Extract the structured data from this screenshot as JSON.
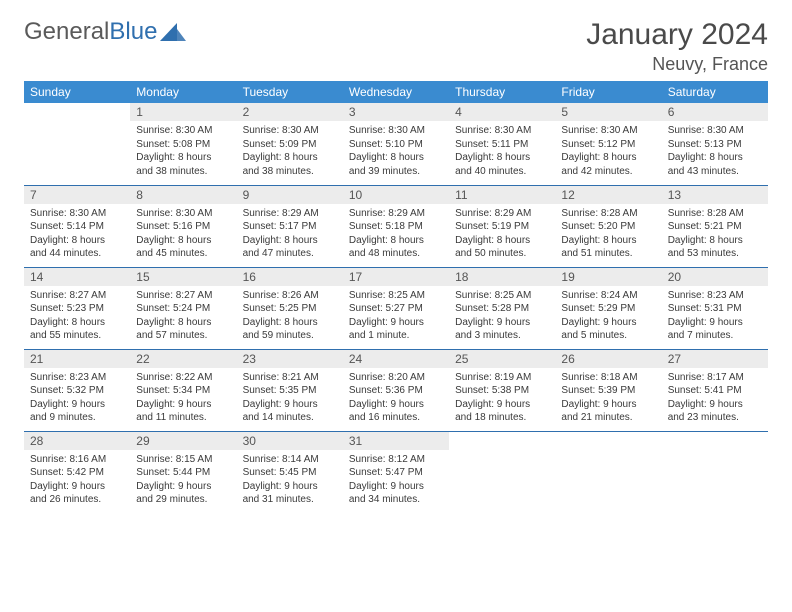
{
  "logo": {
    "part1": "General",
    "part2": "Blue"
  },
  "header": {
    "month_title": "January 2024",
    "location": "Neuvy, France"
  },
  "colors": {
    "header_bg": "#3a8bd0",
    "header_text": "#ffffff",
    "daynum_bg": "#ececec",
    "border": "#2f6fae",
    "logo_blue": "#2f6fae"
  },
  "calendar": {
    "day_headers": [
      "Sunday",
      "Monday",
      "Tuesday",
      "Wednesday",
      "Thursday",
      "Friday",
      "Saturday"
    ],
    "weeks": [
      [
        null,
        {
          "n": "1",
          "sunrise": "Sunrise: 8:30 AM",
          "sunset": "Sunset: 5:08 PM",
          "dl1": "Daylight: 8 hours",
          "dl2": "and 38 minutes."
        },
        {
          "n": "2",
          "sunrise": "Sunrise: 8:30 AM",
          "sunset": "Sunset: 5:09 PM",
          "dl1": "Daylight: 8 hours",
          "dl2": "and 38 minutes."
        },
        {
          "n": "3",
          "sunrise": "Sunrise: 8:30 AM",
          "sunset": "Sunset: 5:10 PM",
          "dl1": "Daylight: 8 hours",
          "dl2": "and 39 minutes."
        },
        {
          "n": "4",
          "sunrise": "Sunrise: 8:30 AM",
          "sunset": "Sunset: 5:11 PM",
          "dl1": "Daylight: 8 hours",
          "dl2": "and 40 minutes."
        },
        {
          "n": "5",
          "sunrise": "Sunrise: 8:30 AM",
          "sunset": "Sunset: 5:12 PM",
          "dl1": "Daylight: 8 hours",
          "dl2": "and 42 minutes."
        },
        {
          "n": "6",
          "sunrise": "Sunrise: 8:30 AM",
          "sunset": "Sunset: 5:13 PM",
          "dl1": "Daylight: 8 hours",
          "dl2": "and 43 minutes."
        }
      ],
      [
        {
          "n": "7",
          "sunrise": "Sunrise: 8:30 AM",
          "sunset": "Sunset: 5:14 PM",
          "dl1": "Daylight: 8 hours",
          "dl2": "and 44 minutes."
        },
        {
          "n": "8",
          "sunrise": "Sunrise: 8:30 AM",
          "sunset": "Sunset: 5:16 PM",
          "dl1": "Daylight: 8 hours",
          "dl2": "and 45 minutes."
        },
        {
          "n": "9",
          "sunrise": "Sunrise: 8:29 AM",
          "sunset": "Sunset: 5:17 PM",
          "dl1": "Daylight: 8 hours",
          "dl2": "and 47 minutes."
        },
        {
          "n": "10",
          "sunrise": "Sunrise: 8:29 AM",
          "sunset": "Sunset: 5:18 PM",
          "dl1": "Daylight: 8 hours",
          "dl2": "and 48 minutes."
        },
        {
          "n": "11",
          "sunrise": "Sunrise: 8:29 AM",
          "sunset": "Sunset: 5:19 PM",
          "dl1": "Daylight: 8 hours",
          "dl2": "and 50 minutes."
        },
        {
          "n": "12",
          "sunrise": "Sunrise: 8:28 AM",
          "sunset": "Sunset: 5:20 PM",
          "dl1": "Daylight: 8 hours",
          "dl2": "and 51 minutes."
        },
        {
          "n": "13",
          "sunrise": "Sunrise: 8:28 AM",
          "sunset": "Sunset: 5:21 PM",
          "dl1": "Daylight: 8 hours",
          "dl2": "and 53 minutes."
        }
      ],
      [
        {
          "n": "14",
          "sunrise": "Sunrise: 8:27 AM",
          "sunset": "Sunset: 5:23 PM",
          "dl1": "Daylight: 8 hours",
          "dl2": "and 55 minutes."
        },
        {
          "n": "15",
          "sunrise": "Sunrise: 8:27 AM",
          "sunset": "Sunset: 5:24 PM",
          "dl1": "Daylight: 8 hours",
          "dl2": "and 57 minutes."
        },
        {
          "n": "16",
          "sunrise": "Sunrise: 8:26 AM",
          "sunset": "Sunset: 5:25 PM",
          "dl1": "Daylight: 8 hours",
          "dl2": "and 59 minutes."
        },
        {
          "n": "17",
          "sunrise": "Sunrise: 8:25 AM",
          "sunset": "Sunset: 5:27 PM",
          "dl1": "Daylight: 9 hours",
          "dl2": "and 1 minute."
        },
        {
          "n": "18",
          "sunrise": "Sunrise: 8:25 AM",
          "sunset": "Sunset: 5:28 PM",
          "dl1": "Daylight: 9 hours",
          "dl2": "and 3 minutes."
        },
        {
          "n": "19",
          "sunrise": "Sunrise: 8:24 AM",
          "sunset": "Sunset: 5:29 PM",
          "dl1": "Daylight: 9 hours",
          "dl2": "and 5 minutes."
        },
        {
          "n": "20",
          "sunrise": "Sunrise: 8:23 AM",
          "sunset": "Sunset: 5:31 PM",
          "dl1": "Daylight: 9 hours",
          "dl2": "and 7 minutes."
        }
      ],
      [
        {
          "n": "21",
          "sunrise": "Sunrise: 8:23 AM",
          "sunset": "Sunset: 5:32 PM",
          "dl1": "Daylight: 9 hours",
          "dl2": "and 9 minutes."
        },
        {
          "n": "22",
          "sunrise": "Sunrise: 8:22 AM",
          "sunset": "Sunset: 5:34 PM",
          "dl1": "Daylight: 9 hours",
          "dl2": "and 11 minutes."
        },
        {
          "n": "23",
          "sunrise": "Sunrise: 8:21 AM",
          "sunset": "Sunset: 5:35 PM",
          "dl1": "Daylight: 9 hours",
          "dl2": "and 14 minutes."
        },
        {
          "n": "24",
          "sunrise": "Sunrise: 8:20 AM",
          "sunset": "Sunset: 5:36 PM",
          "dl1": "Daylight: 9 hours",
          "dl2": "and 16 minutes."
        },
        {
          "n": "25",
          "sunrise": "Sunrise: 8:19 AM",
          "sunset": "Sunset: 5:38 PM",
          "dl1": "Daylight: 9 hours",
          "dl2": "and 18 minutes."
        },
        {
          "n": "26",
          "sunrise": "Sunrise: 8:18 AM",
          "sunset": "Sunset: 5:39 PM",
          "dl1": "Daylight: 9 hours",
          "dl2": "and 21 minutes."
        },
        {
          "n": "27",
          "sunrise": "Sunrise: 8:17 AM",
          "sunset": "Sunset: 5:41 PM",
          "dl1": "Daylight: 9 hours",
          "dl2": "and 23 minutes."
        }
      ],
      [
        {
          "n": "28",
          "sunrise": "Sunrise: 8:16 AM",
          "sunset": "Sunset: 5:42 PM",
          "dl1": "Daylight: 9 hours",
          "dl2": "and 26 minutes."
        },
        {
          "n": "29",
          "sunrise": "Sunrise: 8:15 AM",
          "sunset": "Sunset: 5:44 PM",
          "dl1": "Daylight: 9 hours",
          "dl2": "and 29 minutes."
        },
        {
          "n": "30",
          "sunrise": "Sunrise: 8:14 AM",
          "sunset": "Sunset: 5:45 PM",
          "dl1": "Daylight: 9 hours",
          "dl2": "and 31 minutes."
        },
        {
          "n": "31",
          "sunrise": "Sunrise: 8:12 AM",
          "sunset": "Sunset: 5:47 PM",
          "dl1": "Daylight: 9 hours",
          "dl2": "and 34 minutes."
        },
        null,
        null,
        null
      ]
    ]
  }
}
